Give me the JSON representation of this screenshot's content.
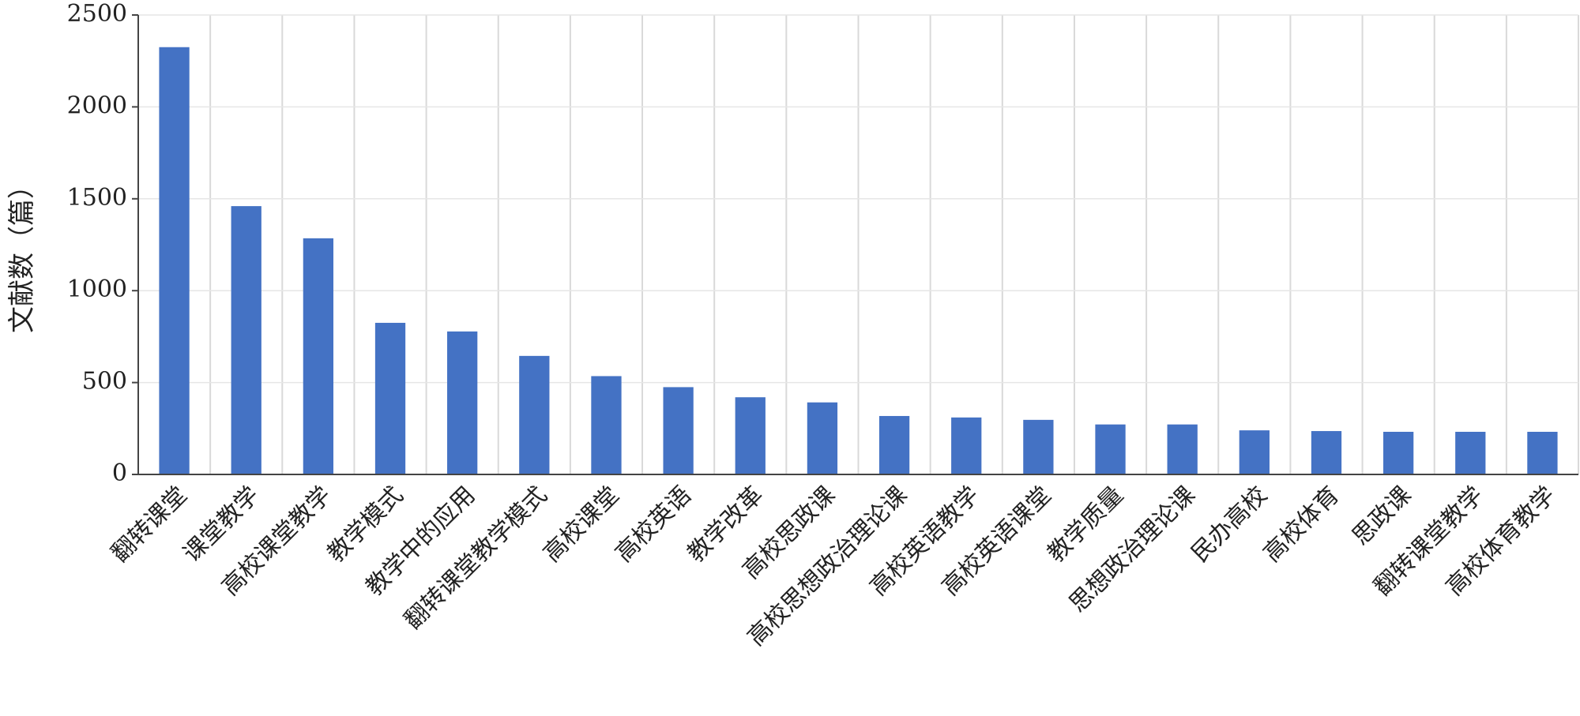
{
  "chart_data": {
    "type": "bar",
    "y_label": "文献数（篇）",
    "categories": [
      "翻转课堂",
      "课堂教学",
      "高校课堂教学",
      "教学模式",
      "教学中的应用",
      "翻转课堂教学模式",
      "高校课堂",
      "高校英语",
      "教学改革",
      "高校思政课",
      "高校思想政治理论课",
      "高校英语教学",
      "高校英语课堂",
      "教学质量",
      "思想政治理论课",
      "民办高校",
      "高校体育",
      "思政课",
      "翻转课堂教学",
      "高校体育教学"
    ],
    "values": [
      2325,
      1460,
      1285,
      825,
      778,
      645,
      535,
      475,
      420,
      392,
      318,
      310,
      297,
      272,
      272,
      240,
      236,
      232,
      232,
      232
    ],
    "color": "#4472c4",
    "ylim": [
      0,
      2500
    ],
    "yticks": [
      0,
      500,
      1000,
      1500,
      2000,
      2500
    ],
    "grid": true
  }
}
